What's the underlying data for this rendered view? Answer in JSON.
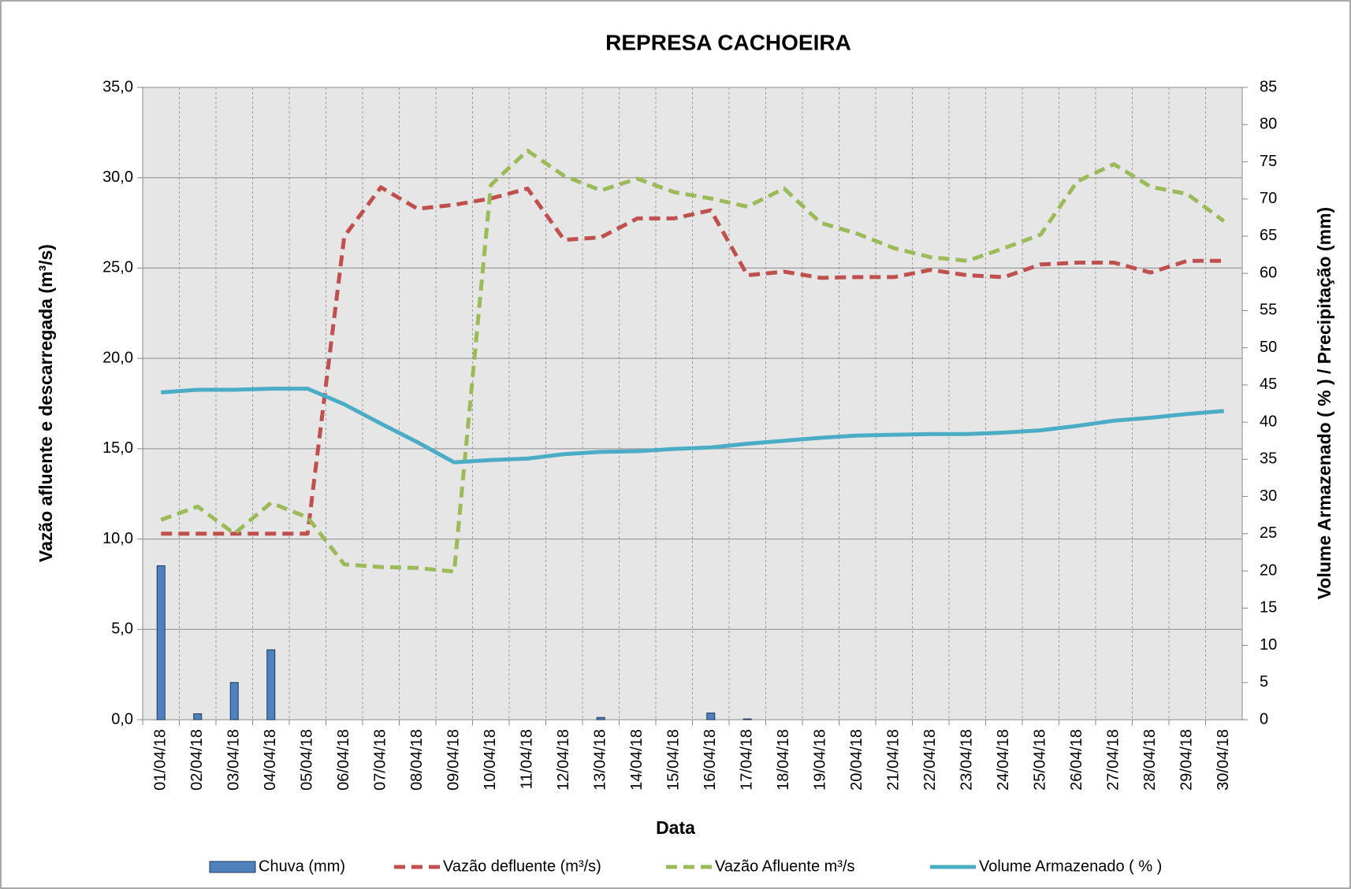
{
  "chart_data": {
    "type": "combo",
    "title": "REPRESA CACHOEIRA",
    "x_label": "Data",
    "y_label": "Vazão afluente e descarregada (m³/s)",
    "y2_label": "Volume Armazenado ( % ) / Precipitação  (mm)",
    "categories": [
      "01/04/18",
      "02/04/18",
      "03/04/18",
      "04/04/18",
      "05/04/18",
      "06/04/18",
      "07/04/18",
      "08/04/18",
      "09/04/18",
      "10/04/18",
      "11/04/18",
      "12/04/18",
      "13/04/18",
      "14/04/18",
      "15/04/18",
      "16/04/18",
      "17/04/18",
      "18/04/18",
      "19/04/18",
      "20/04/18",
      "21/04/18",
      "22/04/18",
      "23/04/18",
      "24/04/18",
      "25/04/18",
      "26/04/18",
      "27/04/18",
      "28/04/18",
      "29/04/18",
      "30/04/18"
    ],
    "series": [
      {
        "name": "Chuva (mm)",
        "type": "bar",
        "axis": "y2",
        "color": "#4f81bd",
        "values": [
          20.7,
          0.8,
          5.0,
          9.4,
          0,
          0,
          0,
          0,
          0,
          0,
          0,
          0,
          0.3,
          0,
          0,
          0.9,
          0.1,
          0,
          0,
          0,
          0,
          0,
          0,
          0,
          0,
          0,
          0,
          0,
          0,
          0
        ]
      },
      {
        "name": "Vazão defluente (m³/s)",
        "type": "line",
        "dashed": true,
        "color": "#c0504d",
        "values": [
          10.3,
          10.3,
          10.3,
          10.3,
          10.3,
          26.75,
          29.47,
          28.28,
          28.5,
          28.85,
          29.4,
          26.56,
          26.7,
          27.75,
          27.75,
          28.2,
          24.6,
          24.8,
          24.46,
          24.5,
          24.5,
          24.9,
          24.6,
          24.5,
          25.2,
          25.3,
          25.3,
          24.75,
          25.4,
          25.4
        ]
      },
      {
        "name": "Vazão Afluente m³/s",
        "type": "line",
        "dashed": true,
        "color": "#9bbb59",
        "values": [
          11.06,
          11.8,
          10.3,
          12.0,
          11.2,
          8.6,
          8.45,
          8.4,
          8.2,
          29.6,
          31.5,
          30.1,
          29.3,
          29.95,
          29.2,
          28.85,
          28.4,
          29.4,
          27.5,
          26.9,
          26.1,
          25.6,
          25.4,
          26.1,
          26.85,
          29.8,
          30.75,
          29.5,
          29.1,
          27.6
        ]
      },
      {
        "name": "Volume Armazenado ( % )",
        "type": "line",
        "axis": "y2",
        "color": "#4bacc6",
        "values": [
          44.0,
          44.35,
          44.35,
          44.5,
          44.5,
          42.4,
          39.8,
          37.3,
          34.6,
          34.9,
          35.1,
          35.7,
          36.0,
          36.1,
          36.4,
          36.6,
          37.1,
          37.5,
          37.9,
          38.2,
          38.3,
          38.4,
          38.4,
          38.6,
          38.9,
          39.5,
          40.2,
          40.6,
          41.1,
          41.5
        ]
      }
    ],
    "ylim": [
      0,
      35
    ],
    "yticks": [
      {
        "value": 0,
        "label": "0,0"
      },
      {
        "value": 5,
        "label": "5,0"
      },
      {
        "value": 10,
        "label": "10,0"
      },
      {
        "value": 15,
        "label": "15,0"
      },
      {
        "value": 20,
        "label": "20,0"
      },
      {
        "value": 25,
        "label": "25,0"
      },
      {
        "value": 30,
        "label": "30,0"
      },
      {
        "value": 35,
        "label": "35,0"
      }
    ],
    "y2lim": [
      0,
      85
    ],
    "y2ticks": [
      0,
      5,
      10,
      15,
      20,
      25,
      30,
      35,
      40,
      45,
      50,
      55,
      60,
      65,
      70,
      75,
      80,
      85
    ],
    "grid": true,
    "legend": "bottom"
  }
}
